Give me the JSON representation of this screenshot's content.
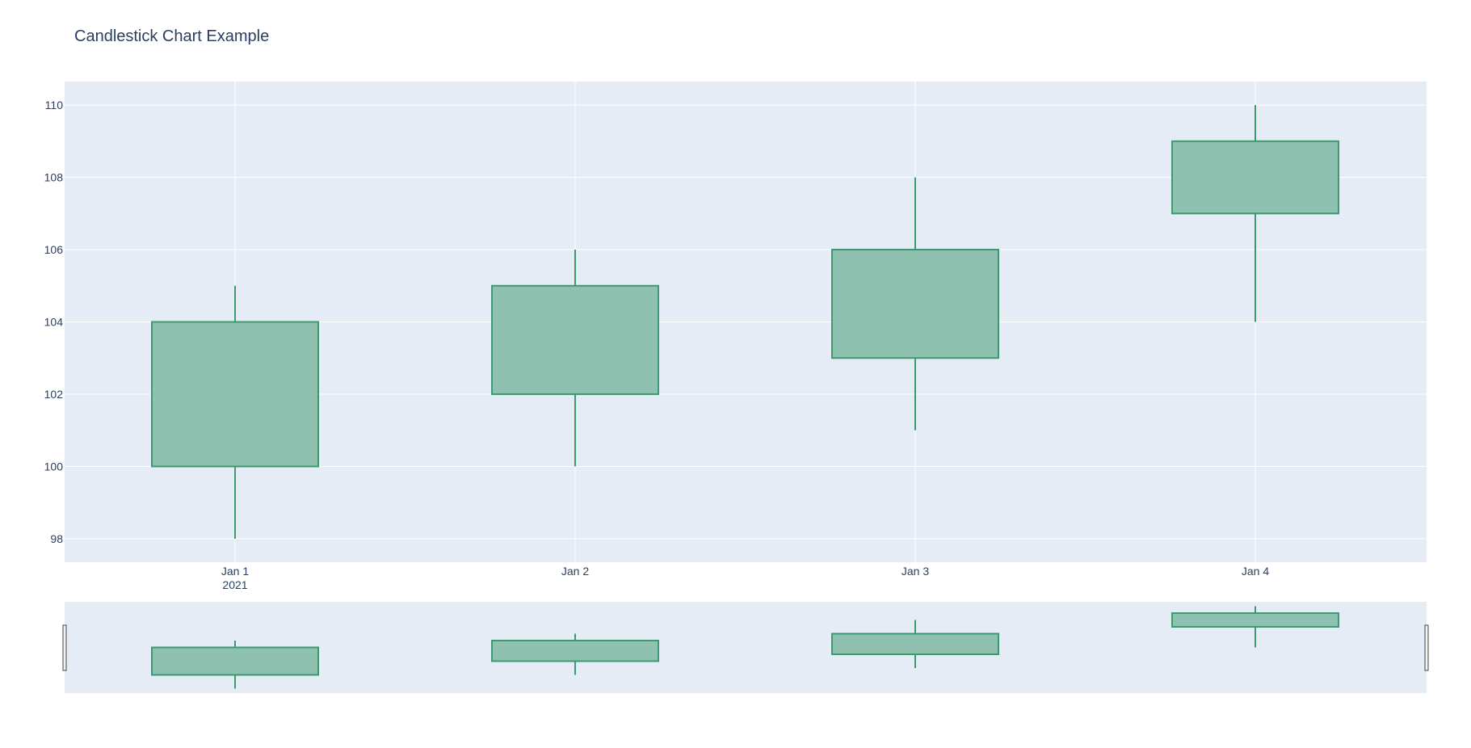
{
  "chart_data": {
    "type": "candlestick",
    "title": "Candlestick Chart Example",
    "xlabel": "",
    "ylabel": "",
    "x": [
      "2021-01-01",
      "2021-01-02",
      "2021-01-03",
      "2021-01-04"
    ],
    "x_tick_labels": [
      "Jan 1",
      "Jan 2",
      "Jan 3",
      "Jan 4"
    ],
    "x_tick_year_label": "2021",
    "open": [
      100,
      102,
      103,
      107
    ],
    "high": [
      105,
      106,
      108,
      110
    ],
    "low": [
      98,
      100,
      101,
      104
    ],
    "close": [
      104,
      105,
      106,
      109
    ],
    "ylim": [
      97.35,
      110.65
    ],
    "y_ticks": [
      98,
      100,
      102,
      104,
      106,
      108,
      110
    ],
    "grid": true,
    "rangeslider": true,
    "colors": {
      "increasing_line": "#3d9970",
      "increasing_fill": "#8fc1b0",
      "plot_bg": "#e5ecf6",
      "grid": "#ffffff",
      "text": "#2a3f5f"
    }
  }
}
